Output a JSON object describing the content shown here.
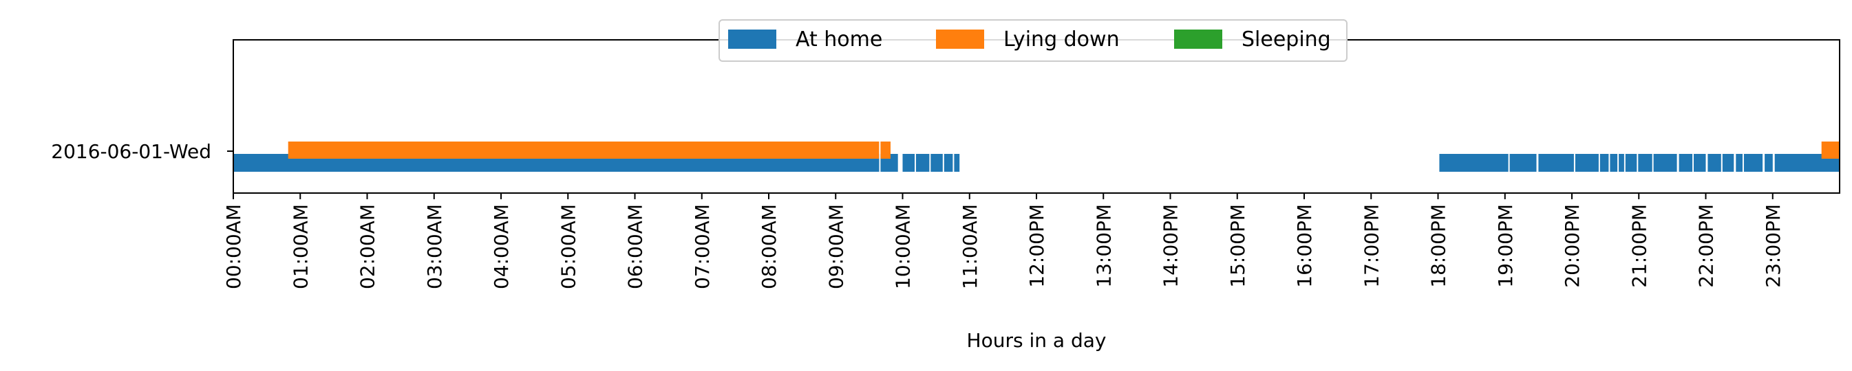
{
  "chart_data": {
    "type": "timeline",
    "xlabel": "Hours in a day",
    "xlim": [
      0,
      24
    ],
    "xticks": [
      {
        "value": 0,
        "label": "00:00AM"
      },
      {
        "value": 1,
        "label": "01:00AM"
      },
      {
        "value": 2,
        "label": "02:00AM"
      },
      {
        "value": 3,
        "label": "03:00AM"
      },
      {
        "value": 4,
        "label": "04:00AM"
      },
      {
        "value": 5,
        "label": "05:00AM"
      },
      {
        "value": 6,
        "label": "06:00AM"
      },
      {
        "value": 7,
        "label": "07:00AM"
      },
      {
        "value": 8,
        "label": "08:00AM"
      },
      {
        "value": 9,
        "label": "09:00AM"
      },
      {
        "value": 10,
        "label": "10:00AM"
      },
      {
        "value": 11,
        "label": "11:00AM"
      },
      {
        "value": 12,
        "label": "12:00PM"
      },
      {
        "value": 13,
        "label": "13:00PM"
      },
      {
        "value": 14,
        "label": "14:00PM"
      },
      {
        "value": 15,
        "label": "15:00PM"
      },
      {
        "value": 16,
        "label": "16:00PM"
      },
      {
        "value": 17,
        "label": "17:00PM"
      },
      {
        "value": 18,
        "label": "18:00PM"
      },
      {
        "value": 19,
        "label": "19:00PM"
      },
      {
        "value": 20,
        "label": "20:00PM"
      },
      {
        "value": 21,
        "label": "21:00PM"
      },
      {
        "value": 22,
        "label": "22:00PM"
      },
      {
        "value": 23,
        "label": "23:00PM"
      }
    ],
    "rows": [
      "2016-06-01-Wed"
    ],
    "legend": {
      "position": "upper center"
    },
    "series": [
      {
        "name": "At home",
        "color": "#1f77b4",
        "intervals": [
          [
            0.0,
            9.65
          ],
          [
            9.67,
            9.93
          ],
          [
            10.0,
            10.18
          ],
          [
            10.2,
            10.4
          ],
          [
            10.42,
            10.6
          ],
          [
            10.62,
            10.75
          ],
          [
            10.77,
            10.85
          ],
          [
            18.02,
            19.05
          ],
          [
            19.07,
            19.47
          ],
          [
            19.5,
            20.03
          ],
          [
            20.05,
            20.4
          ],
          [
            20.42,
            20.55
          ],
          [
            20.57,
            20.68
          ],
          [
            20.7,
            20.78
          ],
          [
            20.8,
            20.97
          ],
          [
            20.99,
            21.2
          ],
          [
            21.22,
            21.57
          ],
          [
            21.6,
            21.8
          ],
          [
            21.82,
            22.0
          ],
          [
            22.03,
            22.23
          ],
          [
            22.25,
            22.42
          ],
          [
            22.45,
            22.55
          ],
          [
            22.57,
            22.85
          ],
          [
            22.88,
            23.0
          ],
          [
            23.03,
            24.0
          ]
        ]
      },
      {
        "name": "Lying down",
        "color": "#ff7f0e",
        "intervals": [
          [
            0.82,
            9.65
          ],
          [
            9.67,
            9.82
          ],
          [
            23.73,
            24.0
          ]
        ]
      },
      {
        "name": "Sleeping",
        "color": "#2ca02c",
        "intervals": []
      }
    ]
  }
}
